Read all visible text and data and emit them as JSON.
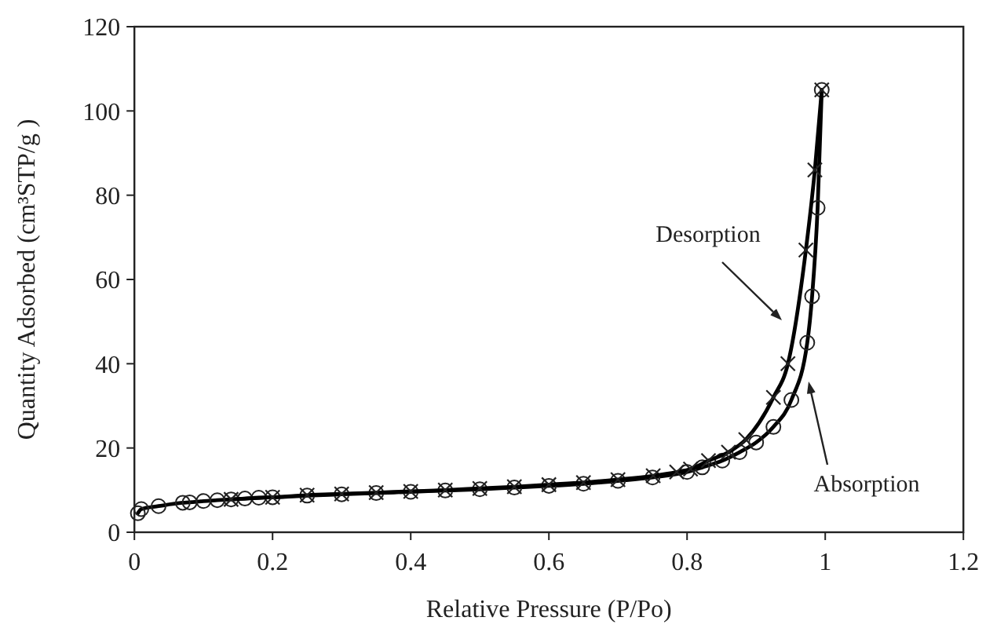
{
  "chart_data": {
    "type": "line",
    "xlabel": "Relative Pressure (P/Po)",
    "ylabel": "Quantity Adsorbed (cm³STP/g )",
    "xlim": [
      0,
      1.2
    ],
    "xticks": [
      0,
      0.2,
      0.4,
      0.6,
      0.8,
      1,
      1.2
    ],
    "ylim": [
      0,
      120
    ],
    "yticks": [
      0,
      20,
      40,
      60,
      80,
      100,
      120
    ],
    "grid": false,
    "line_style": "solid",
    "series": [
      {
        "color": "#000000",
        "marker": "circle",
        "x": [
          0.005,
          0.01,
          0.035,
          0.07,
          0.08,
          0.1,
          0.12,
          0.14,
          0.16,
          0.18,
          0.2,
          0.25,
          0.3,
          0.35,
          0.4,
          0.45,
          0.5,
          0.55,
          0.6,
          0.65,
          0.7,
          0.75,
          0.8,
          0.822,
          0.851,
          0.876,
          0.9,
          0.925,
          0.951,
          0.974,
          0.981,
          0.989,
          0.995
        ],
        "values": [
          4.5,
          5.5,
          6.2,
          7,
          7.1,
          7.4,
          7.6,
          7.8,
          8,
          8.2,
          8.3,
          8.7,
          9,
          9.3,
          9.6,
          9.9,
          10.2,
          10.6,
          11,
          11.5,
          12.2,
          13,
          14.3,
          15.4,
          17,
          19,
          21.3,
          25,
          31.4,
          45,
          56,
          77,
          105
        ]
      },
      {
        "color": "#000000",
        "marker": "cross",
        "x": [
          0.14,
          0.2,
          0.25,
          0.3,
          0.35,
          0.4,
          0.45,
          0.5,
          0.55,
          0.6,
          0.65,
          0.7,
          0.751,
          0.785,
          0.805,
          0.831,
          0.86,
          0.885,
          0.925,
          0.946,
          0.972,
          0.985,
          0.995
        ],
        "values": [
          7.8,
          8.3,
          8.8,
          9.1,
          9.4,
          9.7,
          10,
          10.4,
          10.8,
          11.3,
          11.8,
          12.5,
          13.4,
          14.3,
          15,
          17,
          19,
          22,
          32,
          40,
          67,
          86,
          105
        ]
      }
    ],
    "annotations": [
      "Desorption",
      "Absorption"
    ]
  }
}
